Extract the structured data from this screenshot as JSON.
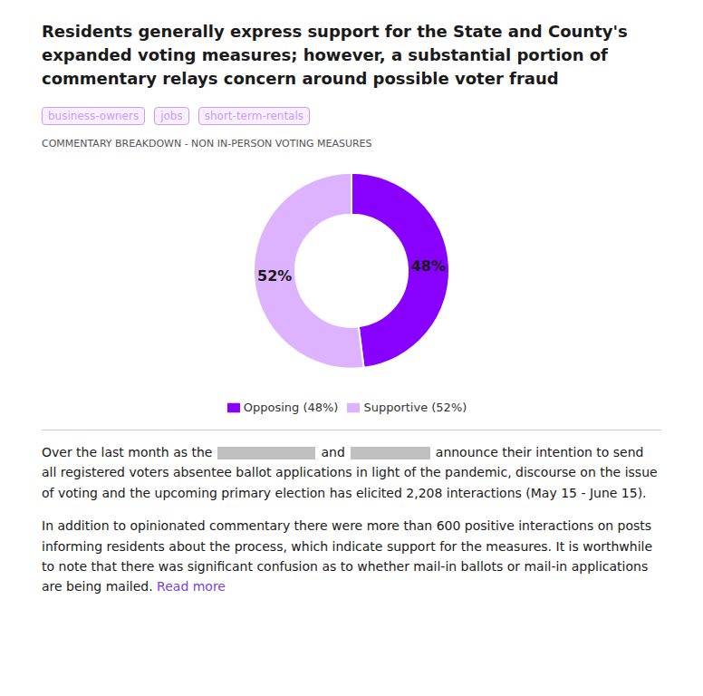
{
  "chart_data": {
    "type": "pie",
    "title": "Residents generally express support for the State and County's\nexpanded voting measures; however, a substantial portion of\ncommentary relays concern around possible voter fraud",
    "subtitle": "COMMENTARY BREAKDOWN - NON IN-PERSON VOTING MEASURES",
    "categories": [
      "Opposing (48%)",
      "Supportive (52%)"
    ],
    "values": [
      48,
      52
    ],
    "value_labels": [
      "48%",
      "52%"
    ],
    "colors": [
      "#8800ff",
      "#ddb3ff"
    ],
    "data_labels": true,
    "legend": "bottom",
    "annotations": [
      "business-owners",
      "jobs",
      "short-term-rentals",
      "Over the last month as the",
      "and",
      "announce their intention to send all registered voters absentee ballot applications in light of the pandemic, discourse on the issue of voting and the upcoming primary election has elicited 2,208 interactions (May 15 - June 15).",
      "In addition to opinionated commentary there were more than 600 positive interactions on posts informing residents about the process, which indicate support for the measures. It is worthwhile to note that there was significant confusion as to whether mail-in ballots or mail-in applications are being mailed.",
      "Read more"
    ]
  }
}
